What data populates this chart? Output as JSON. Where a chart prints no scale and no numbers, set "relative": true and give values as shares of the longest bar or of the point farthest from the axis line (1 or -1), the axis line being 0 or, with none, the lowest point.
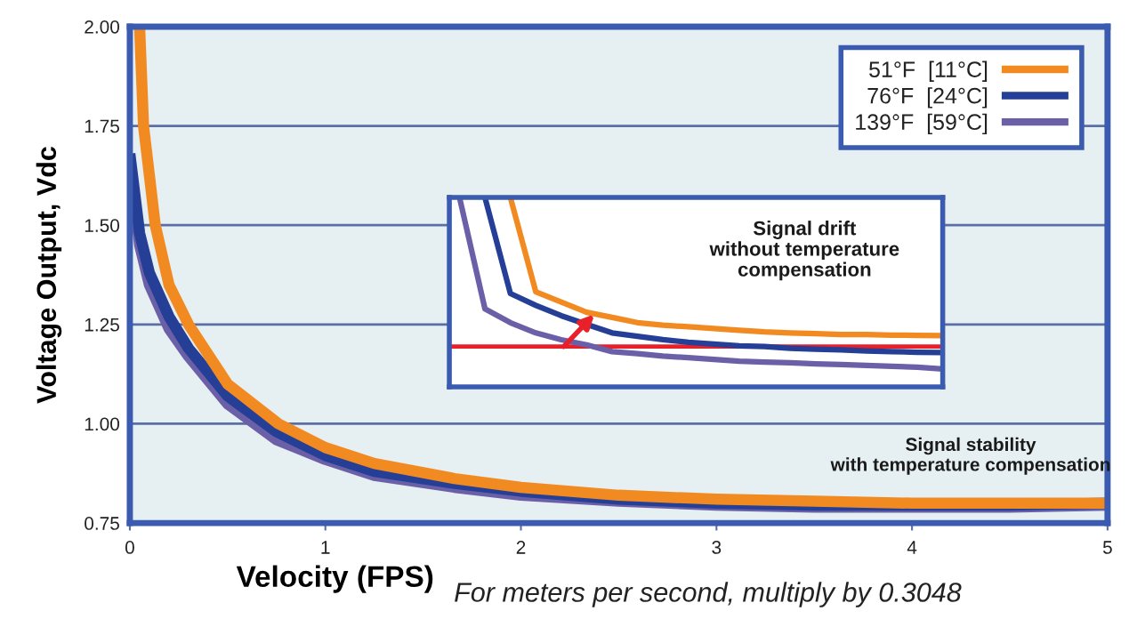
{
  "chart_data": [
    {
      "type": "line",
      "xlabel": "Velocity (FPS)",
      "ylabel": "Voltage Output, Vdc",
      "xlim": [
        0,
        5
      ],
      "ylim": [
        0.75,
        2.0
      ],
      "xticks": [
        0,
        1,
        2,
        3,
        4,
        5
      ],
      "yticks": [
        {
          "value": 0.75,
          "label": "0.75"
        },
        {
          "value": 1.0,
          "label": "1.00"
        },
        {
          "value": 1.25,
          "label": "1.25"
        },
        {
          "value": 1.5,
          "label": "1.50"
        },
        {
          "value": 1.75,
          "label": "1.75"
        },
        {
          "value": 2.0,
          "label": "2.00"
        }
      ],
      "grid": "y",
      "legend": "top right",
      "line_style": "solid",
      "series": [
        {
          "name": "139°F  [59°C]",
          "color": "#6b60a8",
          "x": [
            0,
            0.05,
            0.1,
            0.2,
            0.3,
            0.5,
            0.75,
            1,
            1.25,
            1.66,
            2,
            2.5,
            3,
            3.5,
            4,
            4.5,
            5
          ],
          "values": [
            1.66,
            1.45,
            1.35,
            1.24,
            1.17,
            1.05,
            0.96,
            0.91,
            0.87,
            0.84,
            0.82,
            0.805,
            0.795,
            0.79,
            0.79,
            0.79,
            0.795
          ]
        },
        {
          "name": "76°F  [24°C]",
          "color": "#253f96",
          "x": [
            0,
            0.05,
            0.1,
            0.2,
            0.3,
            0.5,
            0.75,
            1,
            1.25,
            1.66,
            2,
            2.5,
            3,
            3.5,
            4,
            4.5,
            5
          ],
          "values": [
            1.68,
            1.48,
            1.38,
            1.27,
            1.19,
            1.07,
            0.98,
            0.92,
            0.88,
            0.85,
            0.83,
            0.81,
            0.8,
            0.795,
            0.795,
            0.795,
            0.8
          ]
        },
        {
          "name": "51°F  [11°C]",
          "color": "#f28a22",
          "x": [
            0.05,
            0.07,
            0.13,
            0.2,
            0.3,
            0.5,
            0.76,
            1,
            1.25,
            1.66,
            2,
            2.5,
            3,
            3.5,
            4,
            4.5,
            5
          ],
          "values": [
            2.0,
            1.75,
            1.5,
            1.35,
            1.25,
            1.1,
            1.0,
            0.94,
            0.9,
            0.862,
            0.84,
            0.82,
            0.81,
            0.805,
            0.8,
            0.8,
            0.8
          ]
        }
      ],
      "annotations": [
        "Signal stability\nwith temperature compensation",
        "For meters per second, multiply by 0.3048"
      ]
    },
    {
      "type": "line",
      "relative": true,
      "categories": [
        null,
        null,
        null,
        null,
        null,
        null,
        null,
        null,
        null,
        null,
        null,
        null,
        null,
        null,
        null,
        null,
        null,
        null,
        null,
        null
      ],
      "series": [
        {
          "color": "#6b60a8",
          "values": [
            1,
            0.412,
            0.339,
            0.285,
            0.249,
            0.222,
            0.186,
            0.176,
            0.163,
            0.154,
            0.145,
            0.136,
            0.131,
            0.127,
            0.122,
            0.118,
            0.113,
            0.109,
            0.104,
            0.095
          ]
        },
        {
          "color": "#253f96",
          "values": [
            null,
            1,
            0.493,
            0.43,
            0.376,
            0.33,
            0.285,
            0.267,
            0.249,
            0.235,
            0.226,
            0.217,
            0.213,
            0.204,
            0.199,
            0.195,
            0.19,
            0.186,
            0.183,
            0.181
          ]
        },
        {
          "color": "#f28a22",
          "values": [
            null,
            null,
            1,
            0.502,
            0.448,
            0.394,
            0.367,
            0.339,
            0.326,
            0.317,
            0.308,
            0.299,
            0.29,
            0.285,
            0.281,
            0.276,
            0.276,
            0.273,
            0.272,
            0.271
          ]
        }
      ],
      "ref_lines": [
        {
          "axis": "y",
          "value": 0.213,
          "color": "#e8202a"
        }
      ],
      "annotations": [
        "Signal drift\nwithout temperature\ncompensation"
      ]
    }
  ]
}
